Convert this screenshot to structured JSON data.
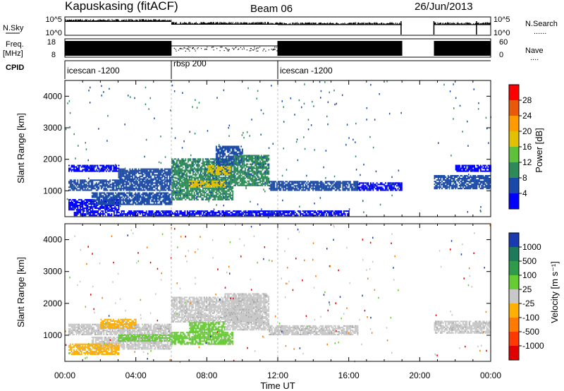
{
  "header": {
    "station": "Kapuskasing (fitACF)",
    "beam": "Beam 06",
    "date": "26/Jun/2013"
  },
  "left_labels": {
    "nsky": "N.Sky",
    "freq_line1": "Freq.",
    "freq_line2": "[MHz]",
    "cpid": "CPID"
  },
  "right_labels": {
    "nsearch": "N.Search",
    "nave": "Nave"
  },
  "noise_panel": {
    "left_ticks": [
      "10^5",
      "10^0"
    ],
    "right_ticks": [
      "10^5",
      "10^0"
    ]
  },
  "freq_panel": {
    "left_ticks": [
      "18",
      "8"
    ],
    "right_ticks": [
      "60",
      "0"
    ]
  },
  "cpid_segments": [
    {
      "label": "icescan -1200",
      "start_h": 0,
      "end_h": 6
    },
    {
      "label": "rbsp 200",
      "start_h": 6,
      "end_h": 12
    },
    {
      "label": "icescan -1200",
      "start_h": 12,
      "end_h": 19
    }
  ],
  "x_axis": {
    "title": "Time UT",
    "ticks": [
      "00:00",
      "04:00",
      "08:00",
      "12:00",
      "16:00",
      "20:00",
      "00:00"
    ]
  },
  "power_colorbar": {
    "title": "Power [dB]",
    "ticks": [
      "28",
      "24",
      "20",
      "16",
      "12",
      "8",
      "4"
    ],
    "colors": [
      "#ff0000",
      "#e85a0a",
      "#ff9a00",
      "#e0c000",
      "#5fc13a",
      "#2e8b57",
      "#1a4aa8",
      "#0000ff"
    ]
  },
  "velocity_colorbar": {
    "title": "Velocity [m s⁻¹]",
    "ticks": [
      "1000",
      "500",
      "100",
      "25",
      "-25",
      "-100",
      "-500",
      "-1000"
    ],
    "colors": [
      "#1a3ab0",
      "#1f7a5c",
      "#2e9a4a",
      "#66cc33",
      "#c8c8c8",
      "#ffb000",
      "#ff7a00",
      "#ff3a00",
      "#e00000"
    ]
  },
  "chart_data": [
    {
      "type": "heatmap",
      "title": "",
      "quantity": "Power",
      "xlabel": "Time UT",
      "ylabel": "Slant Range [km]",
      "xlim": [
        0,
        24
      ],
      "ylim": [
        180,
        4500
      ],
      "yticks": [
        "1000",
        "2000",
        "3000",
        "4000"
      ],
      "regions": [
        {
          "t0": 0.2,
          "t1": 3.0,
          "r0": 380,
          "r1": 700,
          "level": 6
        },
        {
          "t0": 0.2,
          "t1": 6.0,
          "r0": 1000,
          "r1": 1350,
          "level": 8
        },
        {
          "t0": 0.2,
          "t1": 3.0,
          "r0": 1600,
          "r1": 1800,
          "level": 6
        },
        {
          "t0": 1.5,
          "t1": 6.0,
          "r0": 550,
          "r1": 950,
          "level": 8
        },
        {
          "t0": 3.0,
          "t1": 6.0,
          "r0": 1350,
          "r1": 1700,
          "level": 8
        },
        {
          "t0": 6.0,
          "t1": 9.5,
          "r0": 700,
          "r1": 1400,
          "level": 12
        },
        {
          "t0": 6.0,
          "t1": 9.5,
          "r0": 1400,
          "r1": 2000,
          "level": 12
        },
        {
          "t0": 7.0,
          "t1": 9.0,
          "r0": 1100,
          "r1": 1300,
          "level": 20
        },
        {
          "t0": 8.0,
          "t1": 9.3,
          "r0": 1500,
          "r1": 1800,
          "level": 20
        },
        {
          "t0": 8.5,
          "t1": 10.0,
          "r0": 1800,
          "r1": 2400,
          "level": 8
        },
        {
          "t0": 9.5,
          "t1": 11.5,
          "r0": 1150,
          "r1": 2100,
          "level": 12
        },
        {
          "t0": 11.5,
          "t1": 16.5,
          "r0": 1000,
          "r1": 1300,
          "level": 8
        },
        {
          "t0": 16.5,
          "t1": 19.0,
          "r0": 1000,
          "r1": 1250,
          "level": 6
        },
        {
          "t0": 20.8,
          "t1": 24.0,
          "r0": 1050,
          "r1": 1500,
          "level": 8
        },
        {
          "t0": 22.0,
          "t1": 24.0,
          "r0": 1600,
          "r1": 1800,
          "level": 6
        },
        {
          "t0": 0.5,
          "t1": 16.0,
          "r0": 200,
          "r1": 350,
          "level": 6
        }
      ]
    },
    {
      "type": "heatmap",
      "title": "",
      "quantity": "Velocity",
      "xlabel": "Time UT",
      "ylabel": "Slant Range [km]",
      "xlim": [
        0,
        24
      ],
      "ylim": [
        180,
        4500
      ],
      "yticks": [
        "1000",
        "2000",
        "3000",
        "4000"
      ],
      "regions": [
        {
          "t0": 0.2,
          "t1": 6.0,
          "r0": 1000,
          "r1": 1350,
          "value": 0
        },
        {
          "t0": 1.5,
          "t1": 6.0,
          "r0": 550,
          "r1": 950,
          "value": 0
        },
        {
          "t0": 0.2,
          "t1": 3.0,
          "r0": 380,
          "r1": 700,
          "value": -100
        },
        {
          "t0": 2.0,
          "t1": 4.0,
          "r0": 1200,
          "r1": 1500,
          "value": -100
        },
        {
          "t0": 3.0,
          "t1": 6.0,
          "r0": 800,
          "r1": 1000,
          "value": 100
        },
        {
          "t0": 6.0,
          "t1": 9.5,
          "r0": 700,
          "r1": 1100,
          "value": 100
        },
        {
          "t0": 6.0,
          "t1": 11.0,
          "r0": 1400,
          "r1": 2200,
          "value": 0
        },
        {
          "t0": 7.0,
          "t1": 9.0,
          "r0": 1100,
          "r1": 1400,
          "value": 100
        },
        {
          "t0": 9.0,
          "t1": 11.5,
          "r0": 1150,
          "r1": 2300,
          "value": 0
        },
        {
          "t0": 11.5,
          "t1": 16.5,
          "r0": 1000,
          "r1": 1300,
          "value": 0
        },
        {
          "t0": 20.8,
          "t1": 24.0,
          "r0": 1050,
          "r1": 1450,
          "value": 0
        }
      ]
    },
    {
      "type": "line",
      "title": "",
      "quantity": "N.Sky / N.Search",
      "ylim_labels": [
        "10^0",
        "10^5"
      ],
      "gaps_h": [
        [
          19.0,
          20.8
        ]
      ]
    },
    {
      "type": "line",
      "title": "",
      "quantity": "Freq. [MHz] / Nave",
      "ylim": [
        8,
        18
      ],
      "gaps_h": [
        [
          19.0,
          20.8
        ]
      ]
    }
  ]
}
